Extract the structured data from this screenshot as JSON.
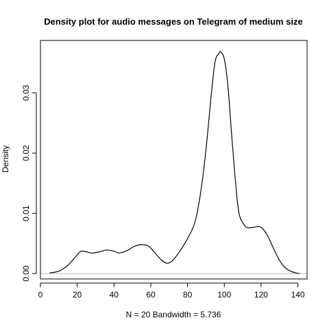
{
  "chart_data": {
    "type": "line",
    "title": "Density plot for audio messages on Telegram of medium size",
    "xlabel": "N = 20   Bandwidth = 5.736",
    "ylabel": "Density",
    "xlim": [
      0,
      145
    ],
    "ylim": [
      -0.0009,
      0.0387
    ],
    "x_ticks": [
      0,
      20,
      40,
      60,
      80,
      100,
      120,
      140
    ],
    "x_tick_labels": [
      "0",
      "20",
      "40",
      "60",
      "80",
      "100",
      "120",
      "140"
    ],
    "y_ticks": [
      0.0,
      0.01,
      0.02,
      0.03
    ],
    "y_tick_labels": [
      "0.00",
      "0.01",
      "0.02",
      "0.03"
    ],
    "baseline": 0,
    "baseline_color": "#bebebe",
    "line_color": "#000000",
    "grid": false,
    "legend": "none",
    "series": [
      {
        "x": [
          5,
          10,
          15,
          20,
          22,
          25,
          28,
          32,
          36,
          40,
          43,
          47,
          51,
          55,
          59,
          62,
          66,
          69,
          72,
          76,
          80,
          84,
          87,
          90,
          93,
          95,
          97,
          98,
          100,
          102,
          104,
          106,
          108,
          111,
          113,
          116,
          119,
          121,
          124,
          127,
          130,
          133,
          136,
          139,
          141
        ],
        "y": [
          0.0001,
          0.0004,
          0.0014,
          0.0031,
          0.0037,
          0.0036,
          0.0034,
          0.0036,
          0.0039,
          0.0037,
          0.0034,
          0.0038,
          0.0045,
          0.0048,
          0.0045,
          0.0035,
          0.0022,
          0.0017,
          0.0022,
          0.0038,
          0.0058,
          0.0085,
          0.0132,
          0.0205,
          0.03,
          0.0352,
          0.0365,
          0.0368,
          0.0356,
          0.031,
          0.023,
          0.0155,
          0.01,
          0.008,
          0.0076,
          0.0077,
          0.0078,
          0.0074,
          0.006,
          0.004,
          0.0022,
          0.001,
          0.0004,
          0.0001,
          0.0
        ]
      }
    ]
  }
}
